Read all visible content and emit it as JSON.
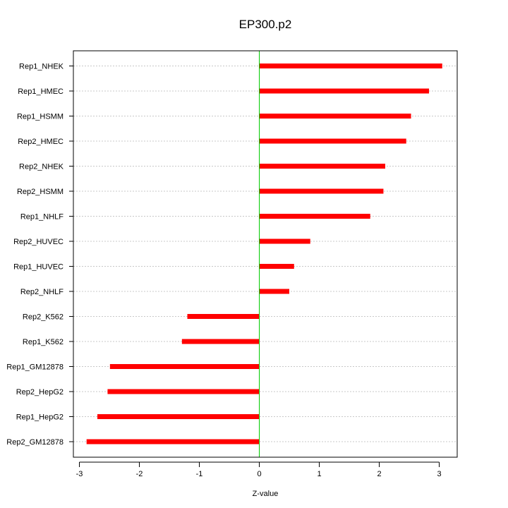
{
  "chart_data": {
    "type": "bar",
    "orientation": "horizontal",
    "title": "EP300.p2",
    "xlabel": "Z-value",
    "ylabel": "",
    "xlim": [
      -3.1,
      3.3
    ],
    "xticks": [
      -3,
      -2,
      -1,
      0,
      1,
      2,
      3
    ],
    "grid": true,
    "zero_line_color": "#00cc00",
    "bar_color": "#ff0000",
    "categories": [
      "Rep1_NHEK",
      "Rep1_HMEC",
      "Rep1_HSMM",
      "Rep2_HMEC",
      "Rep2_NHEK",
      "Rep2_HSMM",
      "Rep1_NHLF",
      "Rep2_HUVEC",
      "Rep1_HUVEC",
      "Rep2_NHLF",
      "Rep2_K562",
      "Rep1_K562",
      "Rep1_GM12878",
      "Rep2_HepG2",
      "Rep1_HepG2",
      "Rep2_GM12878"
    ],
    "values": [
      3.05,
      2.83,
      2.53,
      2.45,
      2.1,
      2.07,
      1.85,
      0.85,
      0.58,
      0.5,
      -1.2,
      -1.29,
      -2.49,
      -2.53,
      -2.7,
      -2.88
    ]
  }
}
